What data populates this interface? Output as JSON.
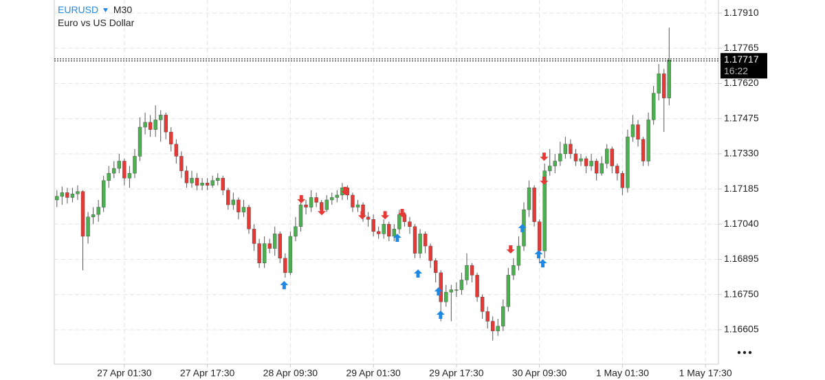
{
  "header": {
    "symbol": "EURUSD",
    "timeframe": "M30",
    "description": "Euro vs US Dollar"
  },
  "chart_data": {
    "type": "candlestick",
    "up_color": "#4caf50",
    "down_color": "#e53935",
    "grid": true,
    "xlim": [
      -1,
      255
    ],
    "ylim": [
      1.16463,
      1.17964
    ],
    "xticks": [
      {
        "value": 26,
        "label": "27 Apr 01:30"
      },
      {
        "value": 58,
        "label": "27 Apr 17:30"
      },
      {
        "value": 90,
        "label": "28 Apr 09:30"
      },
      {
        "value": 122,
        "label": "29 Apr 01:30"
      },
      {
        "value": 154,
        "label": "29 Apr 17:30"
      },
      {
        "value": 186,
        "label": "30 Apr 09:30"
      },
      {
        "value": 218,
        "label": "1 May 01:30"
      },
      {
        "value": 250,
        "label": "1 May 17:30"
      }
    ],
    "yticks": [
      {
        "value": 1.1791,
        "label": "1.17910"
      },
      {
        "value": 1.17765,
        "label": "1.17765"
      },
      {
        "value": 1.1762,
        "label": "1.17620"
      },
      {
        "value": 1.17475,
        "label": "1.17475"
      },
      {
        "value": 1.1733,
        "label": "1.17330"
      },
      {
        "value": 1.17185,
        "label": "1.17185"
      },
      {
        "value": 1.1704,
        "label": "1.17040"
      },
      {
        "value": 1.16895,
        "label": "1.16895"
      },
      {
        "value": 1.1675,
        "label": "1.16750"
      },
      {
        "value": 1.16605,
        "label": "1.16605"
      }
    ],
    "last_price": 1.17717,
    "countdown": "16:22",
    "x": [
      0,
      2,
      4,
      6,
      8,
      10,
      12,
      14,
      16,
      18,
      20,
      22,
      24,
      26,
      28,
      30,
      32,
      34,
      36,
      38,
      40,
      42,
      44,
      46,
      48,
      50,
      52,
      54,
      56,
      58,
      60,
      62,
      64,
      66,
      68,
      70,
      72,
      74,
      76,
      78,
      80,
      82,
      84,
      86,
      88,
      90,
      92,
      94,
      96,
      98,
      100,
      102,
      104,
      106,
      108,
      110,
      112,
      114,
      116,
      118,
      120,
      122,
      124,
      126,
      128,
      130,
      132,
      134,
      136,
      138,
      140,
      142,
      144,
      146,
      148,
      150,
      152,
      154,
      156,
      158,
      160,
      162,
      164,
      166,
      168,
      170,
      172,
      174,
      176,
      178,
      180,
      182,
      184,
      186,
      188,
      190,
      192,
      194,
      196,
      198,
      200,
      202,
      204,
      206,
      208,
      210,
      212,
      214,
      216,
      218,
      220,
      222,
      224,
      226,
      228,
      230,
      232,
      234,
      236
    ],
    "open": [
      1.1714,
      1.17155,
      1.1717,
      1.1715,
      1.17165,
      1.17175,
      1.1699,
      1.1707,
      1.1708,
      1.1711,
      1.1722,
      1.1725,
      1.1727,
      1.173,
      1.1723,
      1.1725,
      1.1732,
      1.1744,
      1.1746,
      1.1743,
      1.1747,
      1.1749,
      1.1742,
      1.1737,
      1.1732,
      1.1726,
      1.1721,
      1.1723,
      1.172,
      1.1721,
      1.172,
      1.1722,
      1.1723,
      1.1718,
      1.1712,
      1.1714,
      1.1709,
      1.1711,
      1.1702,
      1.1696,
      1.1688,
      1.1696,
      1.1694,
      1.17,
      1.169,
      1.1684,
      1.1699,
      1.1703,
      1.1712,
      1.1711,
      1.1715,
      1.1713,
      1.171,
      1.1714,
      1.1715,
      1.1716,
      1.1719,
      1.1716,
      1.1711,
      1.1712,
      1.1707,
      1.1706,
      1.1701,
      1.17,
      1.1704,
      1.1699,
      1.1702,
      1.1708,
      1.1705,
      1.1703,
      1.1692,
      1.17,
      1.1695,
      1.1689,
      1.1684,
      1.1672,
      1.1676,
      1.1677,
      1.1677,
      1.1681,
      1.1687,
      1.1683,
      1.1674,
      1.1668,
      1.1664,
      1.166,
      1.1662,
      1.167,
      1.1683,
      1.1687,
      1.1695,
      1.171,
      1.1719,
      1.1705,
      1.1693,
      1.1726,
      1.1728,
      1.173,
      1.1733,
      1.1737,
      1.1733,
      1.173,
      1.1731,
      1.1728,
      1.173,
      1.1725,
      1.1729,
      1.1735,
      1.1728,
      1.1725,
      1.1719,
      1.174,
      1.1745,
      1.1739,
      1.173,
      1.1747,
      1.1758,
      1.1766,
      1.1756
    ],
    "high": [
      1.1718,
      1.17195,
      1.1719,
      1.1719,
      1.172,
      1.1718,
      1.1709,
      1.1711,
      1.1714,
      1.1724,
      1.1728,
      1.173,
      1.1733,
      1.1731,
      1.1728,
      1.1735,
      1.1748,
      1.175,
      1.1749,
      1.1753,
      1.1751,
      1.175,
      1.1744,
      1.1739,
      1.1734,
      1.1728,
      1.1726,
      1.1725,
      1.1723,
      1.1723,
      1.1724,
      1.1725,
      1.1724,
      1.1719,
      1.1717,
      1.1715,
      1.1714,
      1.1712,
      1.1704,
      1.1698,
      1.1699,
      1.1698,
      1.1703,
      1.1701,
      1.1692,
      1.1701,
      1.1707,
      1.1716,
      1.1714,
      1.1718,
      1.1717,
      1.1714,
      1.1716,
      1.1717,
      1.1718,
      1.1721,
      1.172,
      1.1717,
      1.1714,
      1.1713,
      1.1709,
      1.1708,
      1.1703,
      1.1706,
      1.1705,
      1.1704,
      1.171,
      1.1709,
      1.1707,
      1.1704,
      1.1702,
      1.1701,
      1.1696,
      1.169,
      1.1685,
      1.1679,
      1.1679,
      1.168,
      1.1684,
      1.1692,
      1.1688,
      1.1684,
      1.1675,
      1.167,
      1.1666,
      1.1665,
      1.1673,
      1.1686,
      1.169,
      1.1699,
      1.1713,
      1.1722,
      1.172,
      1.1706,
      1.1729,
      1.1735,
      1.1733,
      1.1738,
      1.174,
      1.1739,
      1.1735,
      1.1733,
      1.1732,
      1.1733,
      1.1731,
      1.1732,
      1.1737,
      1.1736,
      1.1729,
      1.1726,
      1.1743,
      1.1749,
      1.1747,
      1.174,
      1.175,
      1.1761,
      1.177,
      1.1768,
      1.1785
    ],
    "low": [
      1.1711,
      1.1712,
      1.17125,
      1.1713,
      1.1714,
      1.1685,
      1.1696,
      1.1704,
      1.1705,
      1.1709,
      1.1719,
      1.1723,
      1.1725,
      1.172,
      1.1719,
      1.1723,
      1.173,
      1.1741,
      1.174,
      1.174,
      1.1738,
      1.1739,
      1.1734,
      1.1729,
      1.1723,
      1.1719,
      1.1719,
      1.1718,
      1.1718,
      1.1718,
      1.1719,
      1.172,
      1.1716,
      1.171,
      1.171,
      1.1706,
      1.1707,
      1.17,
      1.1693,
      1.1686,
      1.1686,
      1.1692,
      1.1691,
      1.1688,
      1.1682,
      1.1683,
      1.1697,
      1.1701,
      1.1708,
      1.1709,
      1.1711,
      1.1708,
      1.1709,
      1.1712,
      1.1713,
      1.1714,
      1.1714,
      1.1709,
      1.1709,
      1.1705,
      1.1703,
      1.1699,
      1.1698,
      1.1698,
      1.1697,
      1.1697,
      1.17,
      1.1703,
      1.17,
      1.169,
      1.169,
      1.1692,
      1.1686,
      1.168,
      1.1664,
      1.167,
      1.1664,
      1.1674,
      1.1675,
      1.1679,
      1.168,
      1.1672,
      1.1665,
      1.1661,
      1.1656,
      1.1658,
      1.166,
      1.1668,
      1.1681,
      1.1685,
      1.1693,
      1.1707,
      1.1703,
      1.1688,
      1.169,
      1.1724,
      1.1725,
      1.1728,
      1.1731,
      1.1731,
      1.1728,
      1.1728,
      1.1725,
      1.1726,
      1.1722,
      1.1724,
      1.1727,
      1.1725,
      1.1722,
      1.1716,
      1.1717,
      1.1738,
      1.1736,
      1.1728,
      1.1728,
      1.1745,
      1.1755,
      1.1742,
      1.1753
    ],
    "close": [
      1.17155,
      1.1717,
      1.1715,
      1.17165,
      1.17175,
      1.1699,
      1.1707,
      1.1708,
      1.1711,
      1.1722,
      1.1725,
      1.1727,
      1.173,
      1.1723,
      1.1725,
      1.1732,
      1.1744,
      1.1746,
      1.1743,
      1.1747,
      1.1749,
      1.1742,
      1.1737,
      1.1732,
      1.1726,
      1.1721,
      1.1723,
      1.172,
      1.1721,
      1.172,
      1.1722,
      1.1723,
      1.1718,
      1.1712,
      1.1714,
      1.1709,
      1.1711,
      1.1702,
      1.1696,
      1.1688,
      1.1696,
      1.1694,
      1.17,
      1.169,
      1.1684,
      1.1699,
      1.1703,
      1.1712,
      1.1711,
      1.1715,
      1.1713,
      1.171,
      1.1714,
      1.1715,
      1.1716,
      1.1719,
      1.1716,
      1.1711,
      1.1712,
      1.1707,
      1.1706,
      1.1701,
      1.17,
      1.1704,
      1.1699,
      1.1702,
      1.1708,
      1.1705,
      1.1703,
      1.1692,
      1.17,
      1.1695,
      1.1689,
      1.1684,
      1.1672,
      1.1676,
      1.1677,
      1.1677,
      1.1681,
      1.1687,
      1.1683,
      1.1674,
      1.1668,
      1.1664,
      1.166,
      1.1662,
      1.167,
      1.1683,
      1.1687,
      1.1695,
      1.171,
      1.1719,
      1.1705,
      1.1693,
      1.1726,
      1.1728,
      1.173,
      1.1733,
      1.1737,
      1.1733,
      1.173,
      1.1731,
      1.1728,
      1.173,
      1.1725,
      1.1729,
      1.1735,
      1.1728,
      1.1725,
      1.1719,
      1.174,
      1.1745,
      1.1739,
      1.173,
      1.1747,
      1.1758,
      1.1766,
      1.1756,
      1.17717
    ],
    "buy_signals": {
      "color": "#1e88e5",
      "x": [
        87.6,
        131.2,
        139.2,
        147.1,
        147.9,
        179.4,
        185.7,
        187.3
      ],
      "y": [
        1.16789,
        1.16984,
        1.16837,
        1.16763,
        1.16667,
        1.17024,
        1.16916,
        1.16879
      ]
    },
    "sell_signals": {
      "color": "#e53935",
      "x": [
        94.2,
        102.1,
        111.1,
        117.7,
        126.5,
        133.1,
        174.9,
        187.8,
        187.8
      ],
      "y": [
        1.17143,
        1.17094,
        1.17177,
        1.17077,
        1.17077,
        1.17086,
        1.16936,
        1.17318,
        1.17219
      ]
    }
  }
}
